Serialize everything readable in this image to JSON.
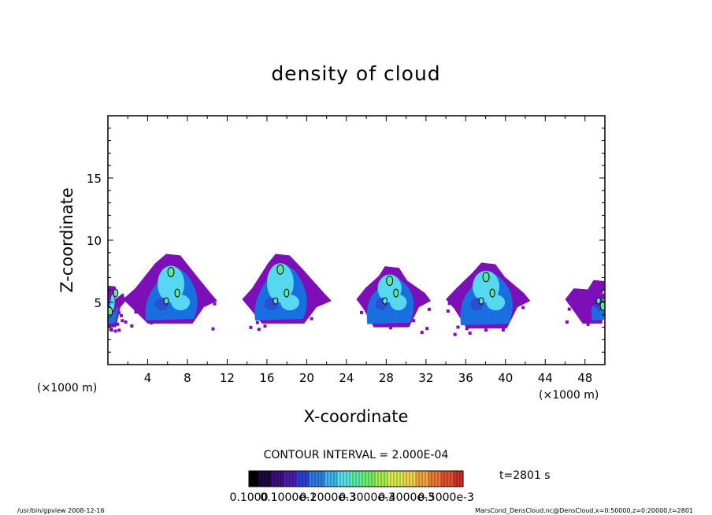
{
  "chart_data": {
    "type": "heatmap",
    "title": "density of cloud",
    "xlabel": "X-coordinate",
    "ylabel": "Z-coordinate",
    "x_unit": "(×1000 m)",
    "xlim": [
      0,
      50
    ],
    "ylim": [
      0,
      20
    ],
    "x_ticks": [
      4,
      8,
      12,
      16,
      20,
      24,
      28,
      32,
      36,
      40,
      44,
      48
    ],
    "x_tick_labels": [
      "4",
      "8",
      "12",
      "16",
      "20",
      "24",
      "28",
      "32",
      "36",
      "40",
      "44",
      "48"
    ],
    "y_ticks": [
      5,
      10,
      15
    ],
    "y_tick_labels": [
      "5",
      "10",
      "15"
    ],
    "contour_interval": "CONTOUR INTERVAL = 2.000E-04",
    "time_label": "t=2801 s",
    "colorbar_labels": [
      "0.1000",
      "0.1000e-1",
      "0.2000e-3",
      "0.3000e-3",
      "0.4000e-3",
      "0.5000e-3"
    ],
    "colorbar_colors": [
      "#000000",
      "#1a0a40",
      "#3a0f7a",
      "#4b1fb0",
      "#2d3fd9",
      "#2f7de6",
      "#3fb6f0",
      "#55e0ea",
      "#5ef0a8",
      "#6ff06a",
      "#a8f050",
      "#d8ef4e",
      "#f0d54a",
      "#f0a83f",
      "#ea7a35",
      "#e0522d",
      "#d42d2d"
    ],
    "clouds": [
      {
        "x_center": 6.5,
        "x_min": 1.5,
        "x_max": 11,
        "base": 3.3,
        "outer_top": 8.9,
        "core_x": 6.5,
        "core_top": 8.2
      },
      {
        "x_center": 17.5,
        "x_min": 13.5,
        "x_max": 22.5,
        "base": 3.3,
        "outer_top": 8.9,
        "core_x": 17.5,
        "core_top": 8.4
      },
      {
        "x_center": 28.5,
        "x_min": 25,
        "x_max": 32.5,
        "base": 3.0,
        "outer_top": 7.9,
        "core_x": 28.5,
        "core_top": 7.5
      },
      {
        "x_center": 38.2,
        "x_min": 34,
        "x_max": 42.5,
        "base": 2.9,
        "outer_top": 8.2,
        "core_x": 38.2,
        "core_top": 7.8
      },
      {
        "x_center": 49.5,
        "x_min": 46,
        "x_max": 50,
        "base": 3.3,
        "outer_top": 6.8,
        "core_x": 50,
        "core_top": 5.5
      },
      {
        "x_center": 0,
        "x_min": 0,
        "x_max": 1.8,
        "base": 3.0,
        "outer_top": 6.4,
        "core_x": 0.3,
        "core_top": 5.0
      }
    ],
    "colors": {
      "outer": "#7d0fb8",
      "inner": "#1a6fe0",
      "core": "#55d8f0",
      "peak": "#5fe89a",
      "contour": "#000000"
    }
  },
  "footer": {
    "left": "/usr/bin/gpview   2008-12-16",
    "right": "MarsCond_DensCloud.nc@DensCloud,x=0:50000,z=0:20000,t=2801"
  }
}
